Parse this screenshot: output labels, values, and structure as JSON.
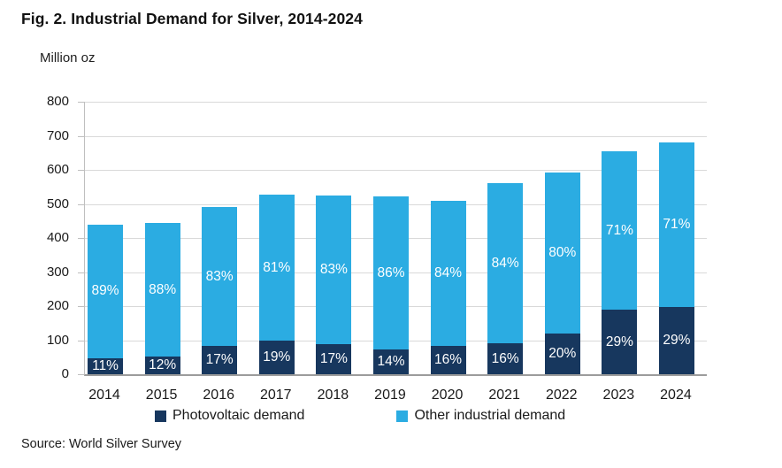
{
  "title": "Fig. 2. Industrial Demand for Silver, 2014-2024",
  "units_label": "Million oz",
  "source": "Source: World Silver Survey",
  "colors": {
    "pv": "#17375E",
    "other": "#2BACE2",
    "gridline": "#D9D9D9",
    "axis": "#BFBFBF",
    "baseline": "#9C9C9C",
    "bar_label_text": "#FFFFFF"
  },
  "chart_data": {
    "type": "bar",
    "stacked": true,
    "title": "Fig. 2. Industrial Demand for Silver, 2014-2024",
    "xlabel": "",
    "ylabel": "Million oz",
    "ylim": [
      0,
      800
    ],
    "ytick_step": 100,
    "yticks": [
      "0",
      "100",
      "200",
      "300",
      "400",
      "500",
      "600",
      "700",
      "800"
    ],
    "grid": true,
    "legend_position": "bottom",
    "categories": [
      "2014",
      "2015",
      "2016",
      "2017",
      "2018",
      "2019",
      "2020",
      "2021",
      "2022",
      "2023",
      "2024"
    ],
    "series": [
      {
        "name": "Photovoltaic demand",
        "color": "#17375E",
        "values": [
          48,
          53,
          83,
          100,
          89,
          73,
          82,
          90,
          119,
          190,
          197
        ],
        "labels": [
          "11%",
          "12%",
          "17%",
          "19%",
          "17%",
          "14%",
          "16%",
          "16%",
          "20%",
          "29%",
          "29%"
        ]
      },
      {
        "name": "Other industrial demand",
        "color": "#2BACE2",
        "values": [
          392,
          390,
          407,
          427,
          436,
          450,
          428,
          471,
          474,
          465,
          483
        ],
        "labels": [
          "89%",
          "88%",
          "83%",
          "81%",
          "83%",
          "86%",
          "84%",
          "84%",
          "80%",
          "71%",
          "71%"
        ]
      }
    ],
    "totals": [
      440,
      443,
      490,
      527,
      525,
      523,
      510,
      561,
      593,
      655,
      680
    ]
  }
}
